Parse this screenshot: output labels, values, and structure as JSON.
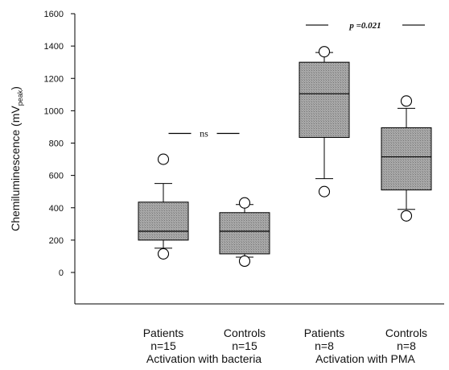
{
  "chart_data": {
    "type": "box",
    "ylabel": "Chemiluminescence (mV",
    "ylabel_sub": "peak",
    "ylabel_close": ")",
    "ylim": [
      -200,
      1600
    ],
    "yticks": [
      0,
      200,
      400,
      600,
      800,
      1000,
      1200,
      1400,
      1600
    ],
    "grid": false,
    "box_fill": "#a8a8a8",
    "boxes": [
      {
        "label": "Patients",
        "n_label": "n=15",
        "whisker_low": 150,
        "q1": 200,
        "median": 255,
        "q3": 435,
        "whisker_high": 550,
        "outliers": [
          700,
          115
        ]
      },
      {
        "label": "Controls",
        "n_label": "n=15",
        "whisker_low": 95,
        "q1": 115,
        "median": 255,
        "q3": 370,
        "whisker_high": 420,
        "outliers": [
          430,
          70
        ]
      },
      {
        "label": "Patients",
        "n_label": "n=8",
        "whisker_low": 580,
        "q1": 835,
        "median": 1105,
        "q3": 1300,
        "whisker_high": 1360,
        "outliers": [
          1365,
          500
        ]
      },
      {
        "label": "Controls",
        "n_label": "n=8",
        "whisker_low": 390,
        "q1": 510,
        "median": 715,
        "q3": 895,
        "whisker_high": 1015,
        "outliers": [
          1060,
          350
        ]
      }
    ],
    "groups": [
      {
        "label": "Activation with bacteria",
        "boxes": [
          0,
          1
        ]
      },
      {
        "label": "Activation with PMA",
        "boxes": [
          2,
          3
        ]
      }
    ],
    "annotations": [
      {
        "text": "ns",
        "between": [
          0,
          1
        ],
        "y": 860,
        "style": "ns"
      },
      {
        "text": "p =0.021",
        "between": [
          2,
          3
        ],
        "y": 1530,
        "style": "p"
      }
    ]
  }
}
